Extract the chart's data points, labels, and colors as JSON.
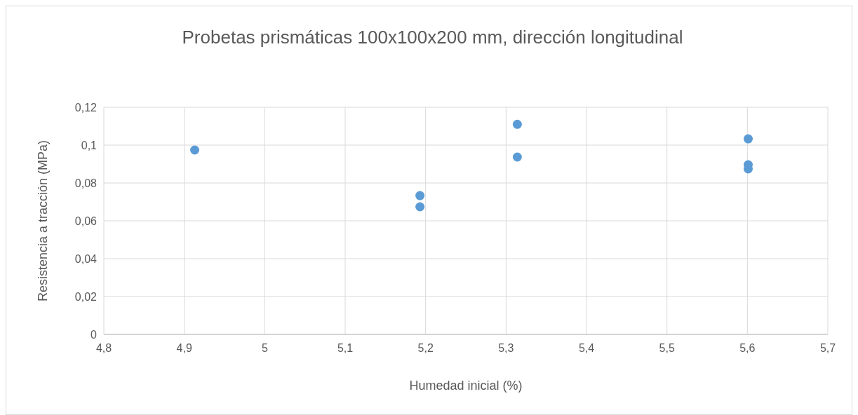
{
  "chart_data": {
    "type": "scatter",
    "title": "Probetas prismáticas 100x100x200 mm, dirección longitudinal",
    "xlabel": "Humedad inicial (%)",
    "ylabel": "Resistencia a tracción (MPa)",
    "x": [
      4.913,
      5.193,
      5.193,
      5.314,
      5.314,
      5.601,
      5.601,
      5.601
    ],
    "series": [
      {
        "color": "#5b9bd5",
        "values": [
          0.0974,
          0.0733,
          0.0674,
          0.111,
          0.0937,
          0.1033,
          0.0896,
          0.0874
        ]
      }
    ],
    "xlim": [
      4.8,
      5.7
    ],
    "xticks": [
      {
        "value": 4.8,
        "label": "4,8"
      },
      {
        "value": 4.9,
        "label": "4,9"
      },
      {
        "value": 5,
        "label": "5"
      },
      {
        "value": 5.1,
        "label": "5,1"
      },
      {
        "value": 5.2,
        "label": "5,2"
      },
      {
        "value": 5.3,
        "label": "5,3"
      },
      {
        "value": 5.4,
        "label": "5,4"
      },
      {
        "value": 5.5,
        "label": "5,5"
      },
      {
        "value": 5.6,
        "label": "5,6"
      },
      {
        "value": 5.7,
        "label": "5,7"
      }
    ],
    "ylim": [
      0,
      0.12
    ],
    "yticks": [
      {
        "value": 0,
        "label": "0"
      },
      {
        "value": 0.02,
        "label": "0,02"
      },
      {
        "value": 0.04,
        "label": "0,04"
      },
      {
        "value": 0.06,
        "label": "0,06"
      },
      {
        "value": 0.08,
        "label": "0,08"
      },
      {
        "value": 0.1,
        "label": "0,1"
      },
      {
        "value": 0.12,
        "label": "0,12"
      }
    ],
    "grid": true,
    "marker": "circle"
  }
}
